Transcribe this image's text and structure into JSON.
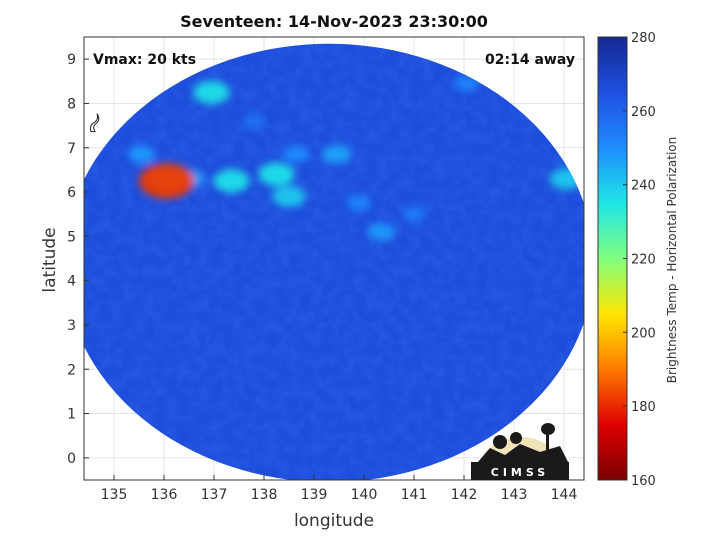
{
  "title": "Seventeen: 14-Nov-2023 23:30:00",
  "annotations": {
    "vmax": "Vmax: 20 kts",
    "time_away": "02:14 away"
  },
  "logo_text": "CIMSS",
  "colors": {
    "background_field": "#1f4fe0",
    "colormap": [
      "#7a0000",
      "#e00000",
      "#ff7a00",
      "#ffe600",
      "#7fff7f",
      "#1ee6e6",
      "#1f8cff",
      "#1f4fe0",
      "#142890"
    ]
  },
  "icons": [
    "storm-symbol-icon",
    "cimss-logo-icon"
  ],
  "chart_data": {
    "type": "heatmap",
    "title": "Seventeen: 14-Nov-2023 23:30:00",
    "xlabel": "longitude",
    "ylabel": "latitude",
    "xlim": [
      134.4,
      144.4
    ],
    "ylim": [
      -0.5,
      9.5
    ],
    "xticks": [
      135,
      136,
      137,
      138,
      139,
      140,
      141,
      142,
      143,
      144
    ],
    "yticks": [
      0,
      1,
      2,
      3,
      4,
      5,
      6,
      7,
      8,
      9
    ],
    "grid": true,
    "field_center": [
      139.3,
      4.4
    ],
    "field_radius_deg": [
      5.3,
      4.95
    ],
    "background_value": 266,
    "colorbar": {
      "label": "Brightness Temp - Horizontal Polarization",
      "range": [
        160,
        280
      ],
      "ticks": [
        160,
        180,
        200,
        220,
        240,
        260,
        280
      ]
    },
    "storm_symbol_position": [
      134.6,
      7.5
    ],
    "features": [
      {
        "lon": 136.05,
        "lat": 6.25,
        "value": 182
      },
      {
        "lon": 136.1,
        "lat": 6.3,
        "value": 232
      },
      {
        "lon": 137.35,
        "lat": 6.25,
        "value": 236
      },
      {
        "lon": 138.25,
        "lat": 6.4,
        "value": 236
      },
      {
        "lon": 138.5,
        "lat": 5.9,
        "value": 240
      },
      {
        "lon": 136.95,
        "lat": 8.25,
        "value": 236
      },
      {
        "lon": 139.45,
        "lat": 6.85,
        "value": 246
      },
      {
        "lon": 138.65,
        "lat": 6.85,
        "value": 250
      },
      {
        "lon": 135.55,
        "lat": 6.85,
        "value": 248
      },
      {
        "lon": 140.35,
        "lat": 5.1,
        "value": 248
      },
      {
        "lon": 139.9,
        "lat": 5.75,
        "value": 252
      },
      {
        "lon": 144.05,
        "lat": 6.3,
        "value": 240
      },
      {
        "lon": 141.0,
        "lat": 5.5,
        "value": 254
      },
      {
        "lon": 142.05,
        "lat": 8.45,
        "value": 252
      },
      {
        "lon": 137.8,
        "lat": 7.6,
        "value": 256
      },
      {
        "lon": 136.55,
        "lat": 6.3,
        "value": 248
      }
    ]
  }
}
